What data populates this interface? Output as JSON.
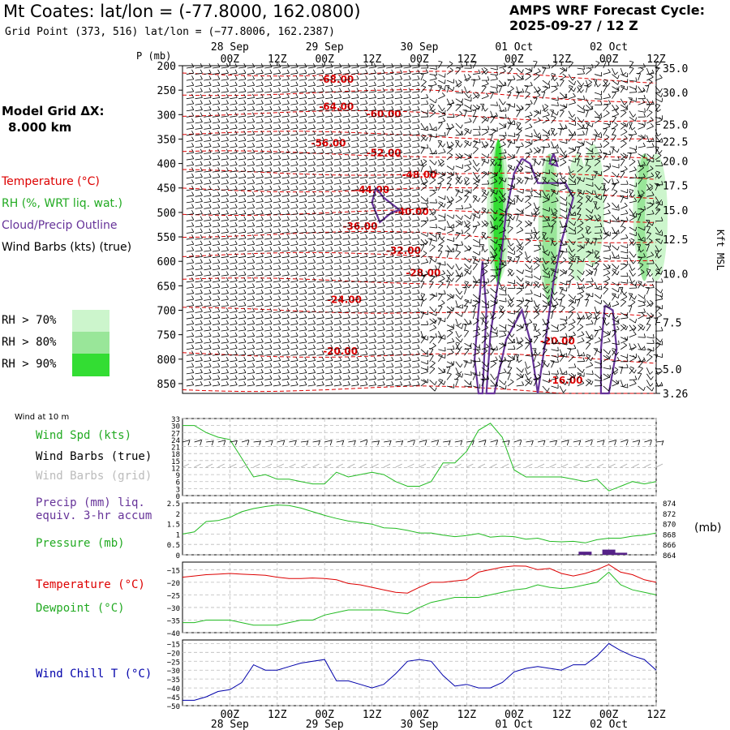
{
  "header": {
    "title": "Mt Coates:  lat/lon = (-77.8000, 162.0800)",
    "grid_point": "Grid Point (373, 516) lat/lon = (−77.8006, 162.2387)",
    "cycle_line1": "AMPS WRF Forecast Cycle:",
    "cycle_line2": "2025-09-27 / 12  Z"
  },
  "left_panel": {
    "model_grid_label": "Model Grid ΔX:",
    "model_grid_value": "8.000 km",
    "legend_temperature": "Temperature (°C)",
    "legend_rh": "RH (%, WRT liq. wat.)",
    "legend_cloud": "Cloud/Precip Outline",
    "legend_wind": "Wind Barbs (kts) (true)",
    "rh_70": "RH > 70%",
    "rh_80": "RH > 80%",
    "rh_90": "RH > 90%"
  },
  "colors": {
    "temperature": "#dd0000",
    "rh_70": "#ccf5cc",
    "rh_80": "#99e699",
    "rh_90": "#33dd33",
    "cloud": "#663399",
    "wind_speed": "#22bb22",
    "precip": "#552288",
    "pressure": "#22bb22",
    "sfc_temperature": "#dd0000",
    "dewpoint": "#22bb22",
    "wind_chill": "#0000aa",
    "grid_barbs": "#aaaaaa"
  },
  "time_axis": {
    "tick_labels": [
      "00Z",
      "12Z",
      "00Z",
      "12Z",
      "00Z",
      "12Z",
      "00Z",
      "12Z",
      "00Z",
      "12Z"
    ],
    "tick_hours": [
      12,
      24,
      36,
      48,
      60,
      72,
      84,
      96,
      108,
      120
    ],
    "date_labels": [
      "28 Sep",
      "29 Sep",
      "30 Sep",
      "01 Oct",
      "02 Oct"
    ],
    "date_hours": [
      12,
      36,
      60,
      84,
      108
    ],
    "range_hours": [
      0,
      120
    ]
  },
  "chart_data": [
    {
      "type": "contour",
      "name": "cross-section",
      "ylabel_left": "P (mb)",
      "ylabel_right": "Kft MSL",
      "pressure_ticks": [
        200,
        250,
        300,
        350,
        400,
        450,
        500,
        550,
        600,
        650,
        700,
        750,
        800,
        850
      ],
      "pressure_range": [
        200,
        870
      ],
      "height_ticks": [
        {
          "label": "35.0",
          "p": 205
        },
        {
          "label": "30.0",
          "p": 255
        },
        {
          "label": "25.0",
          "p": 320
        },
        {
          "label": "22.5",
          "p": 355
        },
        {
          "label": "20.0",
          "p": 395
        },
        {
          "label": "17.5",
          "p": 445
        },
        {
          "label": "15.0",
          "p": 495
        },
        {
          "label": "12.5",
          "p": 555
        },
        {
          "label": "10.0",
          "p": 625
        },
        {
          "label": "7.5",
          "p": 725
        },
        {
          "label": "5.0",
          "p": 820
        },
        {
          "label": "3.26",
          "p": 885
        }
      ],
      "temperature_labels": [
        {
          "text": "-68.00",
          "h": 39,
          "p": 235
        },
        {
          "text": "-64.00",
          "h": 39,
          "p": 290
        },
        {
          "text": "-60.00",
          "h": 51,
          "p": 305
        },
        {
          "text": "-56.00",
          "h": 37,
          "p": 365
        },
        {
          "text": "-52.00",
          "h": 51,
          "p": 385
        },
        {
          "text": "-48.00",
          "h": 60,
          "p": 430
        },
        {
          "text": "-44.00",
          "h": 48,
          "p": 460
        },
        {
          "text": "-40.00",
          "h": 58,
          "p": 505
        },
        {
          "text": "-36.00",
          "h": 45,
          "p": 535
        },
        {
          "text": "-32.00",
          "h": 56,
          "p": 585
        },
        {
          "text": "-28.00",
          "h": 61,
          "p": 630
        },
        {
          "text": "-24.00",
          "h": 41,
          "p": 685
        },
        {
          "text": "-20.00",
          "h": 40,
          "p": 790
        },
        {
          "text": "-20.00",
          "h": 95,
          "p": 770
        },
        {
          "text": "-16.00",
          "h": 97,
          "p": 850
        }
      ]
    },
    {
      "type": "line",
      "name": "surface-wind",
      "title": "Wind at 10 m",
      "legend": [
        "Wind Spd (kts)",
        "Wind Barbs (true)",
        "Wind Barbs (grid)"
      ],
      "yticks": [
        0,
        3,
        6,
        9,
        12,
        15,
        18,
        21,
        24,
        27,
        30,
        33
      ],
      "ylim": [
        0,
        33
      ],
      "x": [
        0,
        3,
        6,
        9,
        12,
        15,
        18,
        21,
        24,
        27,
        30,
        33,
        36,
        39,
        42,
        45,
        48,
        51,
        54,
        57,
        60,
        63,
        66,
        69,
        72,
        75,
        78,
        81,
        84,
        87,
        90,
        93,
        96,
        99,
        102,
        105,
        108,
        111,
        114,
        117,
        120
      ],
      "series": [
        {
          "name": "Wind Spd (kts)",
          "values": [
            30,
            30,
            27,
            25,
            24,
            16,
            8,
            9,
            7,
            7,
            6,
            5,
            5,
            10,
            8,
            9,
            10,
            9,
            6,
            4,
            4,
            6,
            14,
            14,
            19,
            28,
            31,
            25,
            11,
            8,
            8,
            8,
            8,
            7,
            6,
            7,
            2,
            4,
            6,
            5,
            6
          ]
        }
      ]
    },
    {
      "type": "line",
      "name": "precip-pressure",
      "legend": [
        "Precip (mm) liq. equiv. 3-hr accum",
        "Pressure (mb)"
      ],
      "yticks_left": [
        0.0,
        0.5,
        1.0,
        1.5,
        2.0,
        2.5
      ],
      "yticks_right": [
        864,
        866,
        868,
        870,
        872,
        874
      ],
      "ylim_left": [
        0,
        2.5
      ],
      "ylim_right": [
        864,
        874
      ],
      "right_unit": "(mb)",
      "x": [
        0,
        3,
        6,
        9,
        12,
        15,
        18,
        21,
        24,
        27,
        30,
        33,
        36,
        39,
        42,
        45,
        48,
        51,
        54,
        57,
        60,
        63,
        66,
        69,
        72,
        75,
        78,
        81,
        84,
        87,
        90,
        93,
        96,
        99,
        102,
        105,
        108,
        111,
        114,
        117,
        120
      ],
      "series": [
        {
          "name": "Pressure (mb)",
          "values": [
            868.0,
            868.4,
            870.4,
            870.6,
            871.2,
            872.3,
            872.9,
            873.3,
            873.6,
            873.5,
            873.0,
            872.3,
            871.6,
            871.0,
            870.5,
            870.2,
            869.9,
            869.2,
            869.1,
            868.7,
            868.2,
            868.2,
            867.8,
            867.5,
            867.7,
            868.1,
            867.4,
            867.6,
            867.5,
            867.0,
            867.2,
            866.6,
            866.5,
            866.6,
            866.3,
            866.9,
            867.2,
            867.2,
            867.6,
            867.8,
            868.2
          ]
        },
        {
          "name": "Precip (mm)",
          "values": [
            0,
            0,
            0,
            0,
            0,
            0,
            0,
            0,
            0,
            0,
            0,
            0,
            0,
            0,
            0,
            0,
            0,
            0,
            0,
            0,
            0,
            0,
            0,
            0,
            0,
            0,
            0,
            0,
            0,
            0,
            0,
            0,
            0,
            0,
            0.15,
            0,
            0.25,
            0.1,
            0,
            0,
            0
          ]
        }
      ]
    },
    {
      "type": "line",
      "name": "temperature-dewpoint",
      "legend": [
        "Temperature (°C)",
        "Dewpoint (°C)"
      ],
      "yticks": [
        -40,
        -35,
        -30,
        -25,
        -20,
        -15
      ],
      "ylim": [
        -40,
        -12
      ],
      "x": [
        0,
        3,
        6,
        9,
        12,
        15,
        18,
        21,
        24,
        27,
        30,
        33,
        36,
        39,
        42,
        45,
        48,
        51,
        54,
        57,
        60,
        63,
        66,
        69,
        72,
        75,
        78,
        81,
        84,
        87,
        90,
        93,
        96,
        99,
        102,
        105,
        108,
        111,
        114,
        117,
        120
      ],
      "series": [
        {
          "name": "Temperature (°C)",
          "values": [
            -18,
            -17.5,
            -17,
            -16.8,
            -16.5,
            -16.8,
            -17,
            -17.2,
            -18,
            -18.5,
            -18.5,
            -18.3,
            -18.5,
            -19,
            -20.5,
            -21,
            -22,
            -23,
            -24,
            -24.3,
            -22,
            -20,
            -20,
            -19.5,
            -19,
            -16,
            -15,
            -14,
            -13.5,
            -13.6,
            -15,
            -14.5,
            -16.5,
            -17.5,
            -16.5,
            -15,
            -13,
            -16,
            -17,
            -19,
            -20
          ]
        },
        {
          "name": "Dewpoint (°C)",
          "values": [
            -36,
            -36,
            -35,
            -35,
            -35,
            -36,
            -37,
            -37,
            -37,
            -36,
            -35,
            -35,
            -33,
            -32,
            -31,
            -31,
            -31,
            -31,
            -32,
            -32.5,
            -30,
            -28,
            -27,
            -26,
            -26,
            -26,
            -25,
            -24,
            -23,
            -22.5,
            -21,
            -22,
            -22.5,
            -22,
            -21,
            -20,
            -16,
            -21,
            -23,
            -24,
            -25
          ]
        }
      ]
    },
    {
      "type": "line",
      "name": "wind-chill",
      "legend": [
        "Wind Chill T (°C)"
      ],
      "yticks": [
        -50,
        -45,
        -40,
        -35,
        -30,
        -25,
        -20,
        -15
      ],
      "ylim": [
        -50,
        -13
      ],
      "x": [
        0,
        3,
        6,
        9,
        12,
        15,
        18,
        21,
        24,
        27,
        30,
        33,
        36,
        39,
        42,
        45,
        48,
        51,
        54,
        57,
        60,
        63,
        66,
        69,
        72,
        75,
        78,
        81,
        84,
        87,
        90,
        93,
        96,
        99,
        102,
        105,
        108,
        111,
        114,
        117,
        120
      ],
      "series": [
        {
          "name": "Wind Chill T (°C)",
          "values": [
            -47,
            -47,
            -45,
            -42,
            -41,
            -37,
            -27,
            -30,
            -30,
            -28,
            -26,
            -25,
            -24,
            -36,
            -36,
            -38,
            -40,
            -38,
            -32,
            -25,
            -24,
            -25,
            -33,
            -39,
            -38,
            -40,
            -40,
            -37,
            -31,
            -29,
            -28,
            -29,
            -30,
            -27,
            -27,
            -22,
            -15,
            -19,
            -22,
            -24,
            -30
          ]
        }
      ]
    }
  ]
}
